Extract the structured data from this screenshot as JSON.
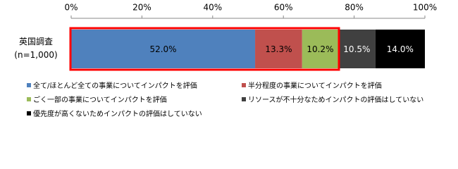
{
  "chart_data": {
    "type": "stacked-bar-horizontal",
    "categories": [
      "英国調査\n(n=1,000)"
    ],
    "xlim": [
      0,
      100
    ],
    "xticks": [
      {
        "value": 0,
        "label": "0%"
      },
      {
        "value": 20,
        "label": "20%"
      },
      {
        "value": 40,
        "label": "40%"
      },
      {
        "value": 60,
        "label": "60%"
      },
      {
        "value": 80,
        "label": "80%"
      },
      {
        "value": 100,
        "label": "100%"
      }
    ],
    "series": [
      {
        "name": "全て/ほとんど全ての事業についてインパクトを評価",
        "color": "#4f81bd",
        "values": [
          52.0
        ],
        "value_labels": [
          "52.0%"
        ]
      },
      {
        "name": "半分程度の事業についてインパクトを評価",
        "color": "#c0504d",
        "values": [
          13.3
        ],
        "value_labels": [
          "13.3%"
        ]
      },
      {
        "name": "ごく一部の事業についてインパクトを評価",
        "color": "#9bbb59",
        "values": [
          10.2
        ],
        "value_labels": [
          "10.2%"
        ]
      },
      {
        "name": "リソースが不十分なためインパクトの評価はしていない",
        "color": "#404040",
        "values": [
          10.5
        ],
        "value_labels": [
          "10.5%"
        ]
      },
      {
        "name": "優先度が高くないためインパクトの評価はしていない",
        "color": "#000000",
        "values": [
          14.0
        ],
        "value_labels": [
          "14.0%"
        ]
      }
    ],
    "highlight_color": "#ff0000"
  }
}
